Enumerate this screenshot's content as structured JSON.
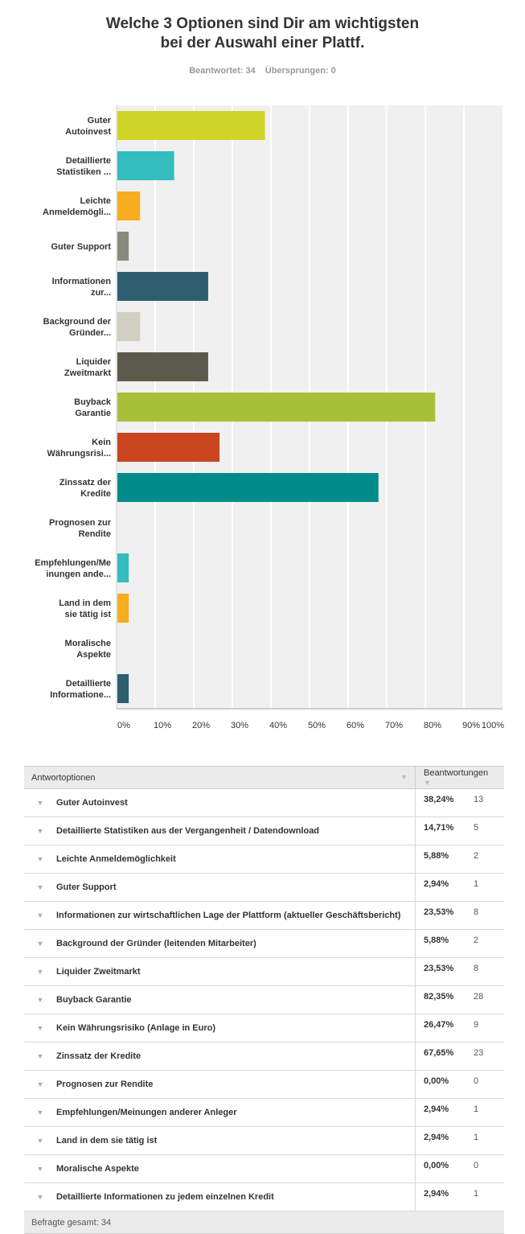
{
  "title_line1": "Welche 3 Optionen sind Dir am wichtigsten",
  "title_line2": "bei der Auswahl einer Plattf.",
  "stats": {
    "answered": "Beantwortet: 34",
    "skipped": "Übersprungen: 0"
  },
  "chart_data": {
    "type": "bar",
    "orientation": "horizontal",
    "xlim": [
      0,
      100
    ],
    "grid": true,
    "ticks": [
      "0%",
      "10%",
      "20%",
      "30%",
      "40%",
      "50%",
      "60%",
      "70%",
      "80%",
      "90%",
      "100%"
    ],
    "categories": [
      [
        "Guter",
        "Autoinvest"
      ],
      [
        "Detaillierte",
        "Statistiken ..."
      ],
      [
        "Leichte",
        "Anmeldemögli..."
      ],
      [
        "Guter Support"
      ],
      [
        "Informationen",
        "zur..."
      ],
      [
        "Background der",
        "Gründer..."
      ],
      [
        "Liquider",
        "Zweitmarkt"
      ],
      [
        "Buyback",
        "Garantie"
      ],
      [
        "Kein",
        "Währungsrisi..."
      ],
      [
        "Zinssatz der",
        "Kredite"
      ],
      [
        "Prognosen zur",
        "Rendite"
      ],
      [
        "Empfehlungen/Me",
        "inungen ande..."
      ],
      [
        "Land in dem",
        "sie tätig ist"
      ],
      [
        "Moralische",
        "Aspekte"
      ],
      [
        "Detaillierte",
        "Informatione..."
      ]
    ],
    "values": [
      38.24,
      14.71,
      5.88,
      2.94,
      23.53,
      5.88,
      23.53,
      82.35,
      26.47,
      67.65,
      0,
      2.94,
      2.94,
      0,
      2.94
    ],
    "colors": [
      "#cfd427",
      "#33bdbe",
      "#f6ae1e",
      "#888a7c",
      "#2e5f6f",
      "#d0cfc0",
      "#5c5a4a",
      "#a8bf38",
      "#c8451d",
      "#008b8b",
      "#a8bf38",
      "#33bdbe",
      "#f6ae1e",
      "#888a7c",
      "#2e5f6f"
    ]
  },
  "table": {
    "headers": [
      "Antwortoptionen",
      "Beantwortungen"
    ],
    "rows": [
      {
        "option": "Guter Autoinvest",
        "percent": "38,24%",
        "count": "13"
      },
      {
        "option": "Detaillierte Statistiken aus der Vergangenheit / Datendownload",
        "percent": "14,71%",
        "count": "5"
      },
      {
        "option": "Leichte Anmeldemöglichkeit",
        "percent": "5,88%",
        "count": "2"
      },
      {
        "option": "Guter Support",
        "percent": "2,94%",
        "count": "1"
      },
      {
        "option": "Informationen zur wirtschaftlichen Lage der Plattform (aktueller Geschäftsbericht)",
        "percent": "23,53%",
        "count": "8"
      },
      {
        "option": "Background der Gründer (leitenden Mitarbeiter)",
        "percent": "5,88%",
        "count": "2"
      },
      {
        "option": "Liquider Zweitmarkt",
        "percent": "23,53%",
        "count": "8"
      },
      {
        "option": "Buyback Garantie",
        "percent": "82,35%",
        "count": "28"
      },
      {
        "option": "Kein Währungsrisiko (Anlage in Euro)",
        "percent": "26,47%",
        "count": "9"
      },
      {
        "option": "Zinssatz der Kredite",
        "percent": "67,65%",
        "count": "23"
      },
      {
        "option": "Prognosen zur Rendite",
        "percent": "0,00%",
        "count": "0"
      },
      {
        "option": "Empfehlungen/Meinungen anderer Anleger",
        "percent": "2,94%",
        "count": "1"
      },
      {
        "option": "Land in dem sie tätig ist",
        "percent": "2,94%",
        "count": "1"
      },
      {
        "option": "Moralische Aspekte",
        "percent": "0,00%",
        "count": "0"
      },
      {
        "option": "Detaillierte Informationen zu jedem einzelnen Kredit",
        "percent": "2,94%",
        "count": "1"
      }
    ],
    "footer": "Befragte gesamt: 34"
  }
}
